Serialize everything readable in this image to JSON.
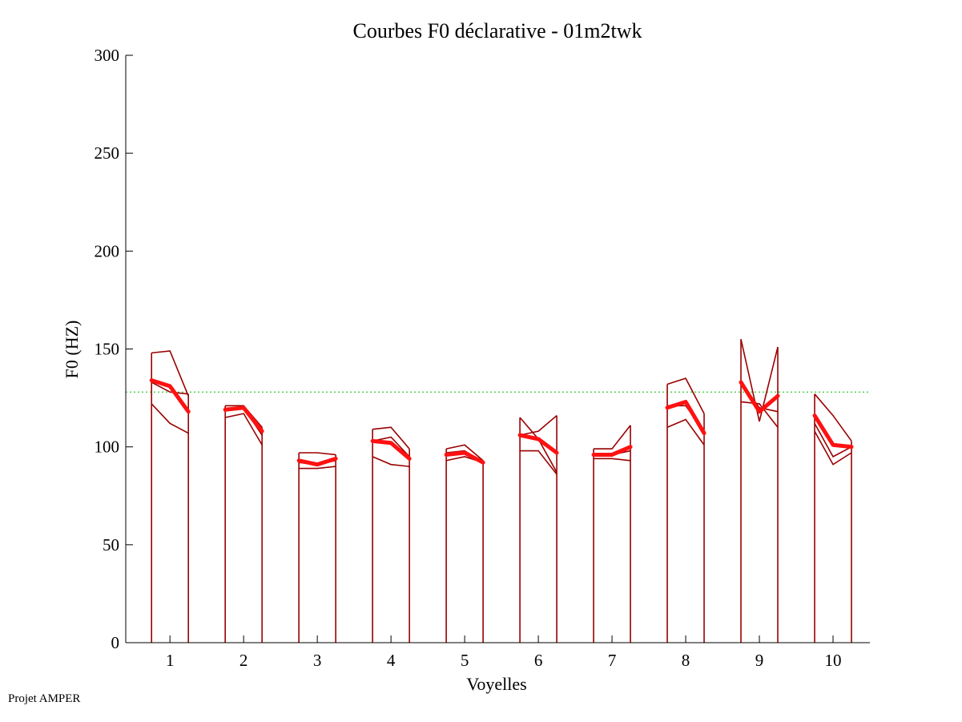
{
  "chart_data": {
    "type": "line",
    "title": "Courbes F0 déclarative - 01m2twk",
    "xlabel": "Voyelles",
    "ylabel": "F0 (HZ)",
    "ylim": [
      0,
      300
    ],
    "xlim": [
      0.4,
      10.5
    ],
    "yticks": [
      0,
      50,
      100,
      150,
      200,
      250,
      300
    ],
    "xticks": [
      1,
      2,
      3,
      4,
      5,
      6,
      7,
      8,
      9,
      10
    ],
    "reference_line": {
      "y": 128,
      "color": "#33cc33",
      "style": "dotted"
    },
    "colors": {
      "individual": "#990000",
      "mean": "#ff1111",
      "reference": "#33cc33"
    },
    "vowels": [
      {
        "x": 1,
        "curves": [
          [
            148,
            149,
            126
          ],
          [
            133,
            128,
            127
          ],
          [
            122,
            112,
            107
          ]
        ],
        "mean": [
          134,
          131,
          118
        ]
      },
      {
        "x": 2,
        "curves": [
          [
            121,
            121,
            110
          ],
          [
            119,
            120,
            106
          ],
          [
            115,
            117,
            101
          ]
        ],
        "mean": [
          119,
          120,
          108
        ]
      },
      {
        "x": 3,
        "curves": [
          [
            97,
            97,
            96
          ],
          [
            92,
            91,
            93
          ],
          [
            89,
            89,
            90
          ]
        ],
        "mean": [
          93,
          91,
          94
        ]
      },
      {
        "x": 4,
        "curves": [
          [
            109,
            110,
            99
          ],
          [
            103,
            105,
            95
          ],
          [
            95,
            91,
            90
          ]
        ],
        "mean": [
          103,
          102,
          94
        ]
      },
      {
        "x": 5,
        "curves": [
          [
            99,
            101,
            93
          ],
          [
            97,
            98,
            92
          ],
          [
            93,
            95,
            92
          ]
        ],
        "mean": [
          96,
          97,
          92
        ]
      },
      {
        "x": 6,
        "curves": [
          [
            115,
            104,
            87
          ],
          [
            106,
            108,
            116
          ],
          [
            98,
            98,
            86
          ]
        ],
        "mean": [
          106,
          104,
          97
        ]
      },
      {
        "x": 7,
        "curves": [
          [
            99,
            99,
            111
          ],
          [
            96,
            96,
            98
          ],
          [
            94,
            94,
            93
          ]
        ],
        "mean": [
          96,
          96,
          100
        ]
      },
      {
        "x": 8,
        "curves": [
          [
            132,
            135,
            117
          ],
          [
            121,
            121,
            108
          ],
          [
            110,
            114,
            101
          ]
        ],
        "mean": [
          120,
          123,
          107
        ]
      },
      {
        "x": 9,
        "curves": [
          [
            155,
            113,
            151
          ],
          [
            133,
            120,
            118
          ],
          [
            123,
            122,
            110
          ]
        ],
        "mean": [
          133,
          118,
          126
        ]
      },
      {
        "x": 10,
        "curves": [
          [
            127,
            116,
            103
          ],
          [
            112,
            95,
            100
          ],
          [
            108,
            91,
            97
          ]
        ],
        "mean": [
          116,
          101,
          100
        ]
      }
    ]
  },
  "footer": "Projet AMPER"
}
